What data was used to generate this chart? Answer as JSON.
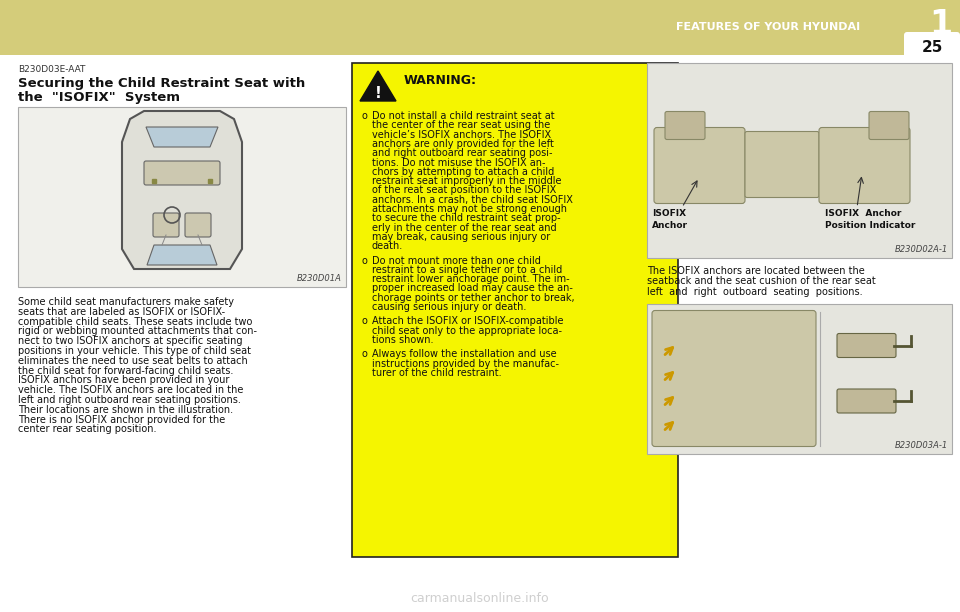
{
  "bg_color": "#ffffff",
  "header_color": "#d4cc7a",
  "header_text": "FEATURES OF YOUR HYUNDAI",
  "header_text_color": "#ffffff",
  "header_number": "1",
  "page_number": "25",
  "section_code": "B230D03E-AAT",
  "section_title_line1": "Securing the Child Restraint Seat with",
  "section_title_line2": "the  \"ISOFIX\"  System",
  "fig1_label": "B230D01A",
  "fig2_label": "B230D02A-1",
  "fig3_label": "B230D03A-1",
  "warning_header": "WARNING:",
  "warning_bg": "#f5f500",
  "body_text": "Some child seat manufacturers make safety\nseats that are labeled as ISOFIX or ISOFIX-\ncompatible child seats. These seats include two\nrigid or webbing mounted attachments that con-\nnect to two ISOFIX anchors at specific seating\npositions in your vehicle. This type of child seat\neliminates the need to use seat belts to attach\nthe child seat for forward-facing child seats.\nISOFIX anchors have been provided in your\nvehicle. The ISOFIX anchors are located in the\nleft and right outboard rear seating positions.\nTheir locations are shown in the illustration.\nThere is no ISOFIX anchor provided for the\ncenter rear seating position.",
  "right_caption_lines": [
    "The ISOFIX anchors are located between the",
    "seatback and the seat cushion of the rear seat",
    "left  and  right  outboard  seating  positions."
  ],
  "isofix_label1_line1": "ISOFIX",
  "isofix_label1_line2": "Anchor",
  "isofix_label2_line1": "ISOFIX  Anchor",
  "isofix_label2_line2": "Position Indicator",
  "watermark": "carmanualsonline.info",
  "watermark_color": "#bbbbbb",
  "bullet_texts": [
    "Do not install a child restraint seat at\nthe center of the rear seat using the\nvehicle’s ISOFIX anchors. The ISOFIX\nanchors are only provided for the left\nand right outboard rear seating posi-\ntions. Do not misuse the ISOFIX an-\nchors by attempting to attach a child\nrestraint seat improperly in the middle\nof the reat seat position to the ISOFIX\nanchors. In a crash, the child seat ISOFIX\nattachments may not be strong enough\nto secure the child restraint seat prop-\nerly in the center of the rear seat and\nmay break, causing serious injury or\ndeath.",
    "Do not mount more than one child\nrestraint to a single tether or to a child\nrestraint lower anchorage point. The im-\nproper increased load may cause the an-\nchorage points or tether anchor to break,\ncausing serious injury or death.",
    "Attach the ISOFIX or ISOFIX-compatible\nchild seat only to the appropriate loca-\ntions shown.",
    "Always follow the installation and use\ninstructions provided by the manufac-\nturer of the child restraint."
  ]
}
